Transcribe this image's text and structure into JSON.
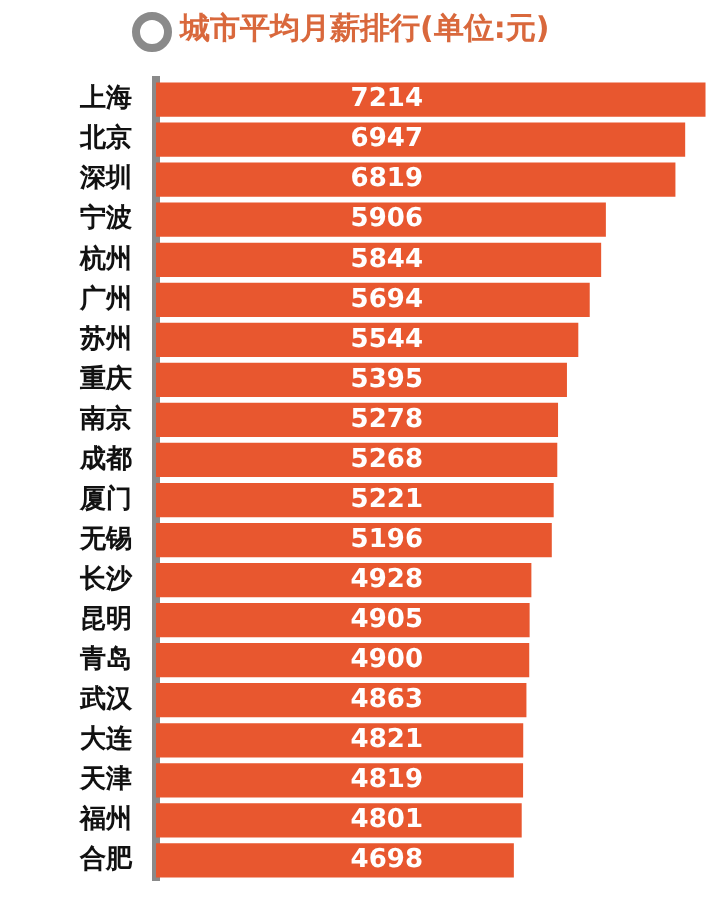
{
  "chart_data": {
    "type": "bar",
    "orientation": "horizontal",
    "title": "城市平均月薪排行(单位:元)",
    "categories": [
      "上海",
      "北京",
      "深圳",
      "宁波",
      "杭州",
      "广州",
      "苏州",
      "重庆",
      "南京",
      "成都",
      "厦门",
      "无锡",
      "长沙",
      "昆明",
      "青岛",
      "武汉",
      "大连",
      "天津",
      "福州",
      "合肥"
    ],
    "values": [
      7214,
      6947,
      6819,
      5906,
      5844,
      5694,
      5544,
      5395,
      5278,
      5268,
      5221,
      5196,
      4928,
      4905,
      4900,
      4863,
      4821,
      4819,
      4801,
      4698
    ],
    "color": "#e8572f",
    "data_labels": true
  }
}
